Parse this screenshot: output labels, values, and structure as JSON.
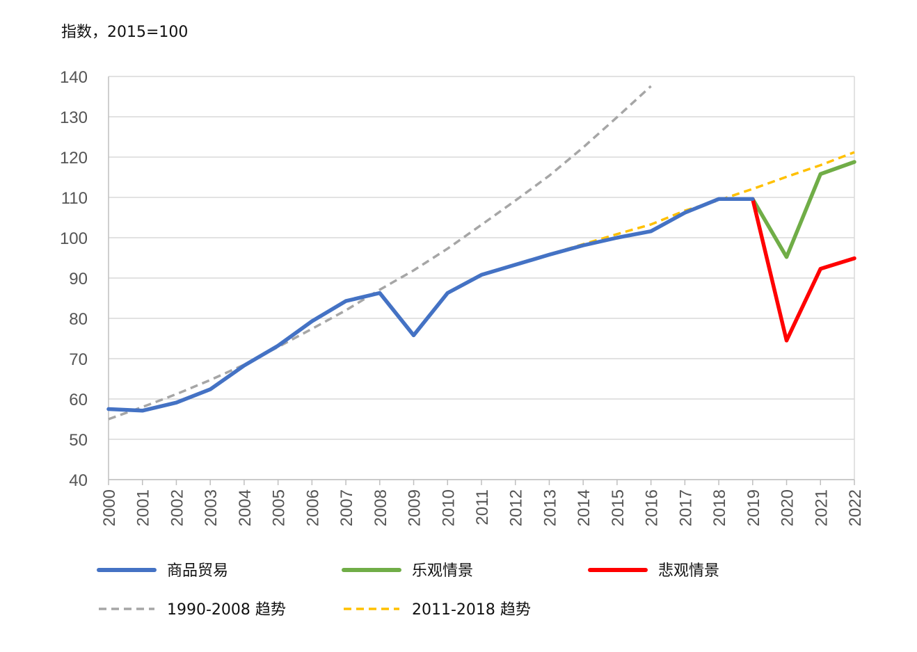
{
  "chart_data": {
    "type": "line",
    "y_unit_label": "指数，2015=100",
    "categories": [
      "2000",
      "2001",
      "2002",
      "2003",
      "2004",
      "2005",
      "2006",
      "2007",
      "2008",
      "2009",
      "2010",
      "2011",
      "2012",
      "2013",
      "2014",
      "2015",
      "2016",
      "2017",
      "2018",
      "2019",
      "2020",
      "2021",
      "2022"
    ],
    "ylim": [
      40,
      140
    ],
    "yticks": [
      40,
      50,
      60,
      70,
      80,
      90,
      100,
      110,
      120,
      130,
      140
    ],
    "grid": true,
    "legend_position": "bottom",
    "series": [
      {
        "name": "商品贸易",
        "color": "#4472C4",
        "style": "solid",
        "points": [
          [
            "2000",
            57.5
          ],
          [
            "2001",
            57.1
          ],
          [
            "2002",
            59.1
          ],
          [
            "2003",
            62.4
          ],
          [
            "2004",
            68.3
          ],
          [
            "2005",
            73.2
          ],
          [
            "2006",
            79.3
          ],
          [
            "2007",
            84.3
          ],
          [
            "2008",
            86.3
          ],
          [
            "2009",
            75.8
          ],
          [
            "2010",
            86.3
          ],
          [
            "2011",
            90.8
          ],
          [
            "2012",
            93.3
          ],
          [
            "2013",
            95.8
          ],
          [
            "2014",
            98.1
          ],
          [
            "2015",
            100.0
          ],
          [
            "2016",
            101.6
          ],
          [
            "2017",
            106.2
          ],
          [
            "2018",
            109.6
          ],
          [
            "2019",
            109.6
          ]
        ]
      },
      {
        "name": "乐观情景",
        "color": "#70AD47",
        "style": "solid",
        "points": [
          [
            "2019",
            109.6
          ],
          [
            "2020",
            95.2
          ],
          [
            "2021",
            115.8
          ],
          [
            "2022",
            118.8
          ]
        ]
      },
      {
        "name": "悲观情景",
        "color": "#FF0000",
        "style": "solid",
        "points": [
          [
            "2019",
            109.6
          ],
          [
            "2020",
            74.5
          ],
          [
            "2021",
            92.3
          ],
          [
            "2022",
            94.9
          ]
        ]
      },
      {
        "name": "1990-2008 趋势",
        "color": "#A6A6A6",
        "style": "dashed",
        "points": [
          [
            "2000",
            55.0
          ],
          [
            "2001",
            58.0
          ],
          [
            "2002",
            61.2
          ],
          [
            "2003",
            64.7
          ],
          [
            "2004",
            68.5
          ],
          [
            "2005",
            72.9
          ],
          [
            "2006",
            77.4
          ],
          [
            "2007",
            82.0
          ],
          [
            "2008",
            87.1
          ],
          [
            "2009",
            91.9
          ],
          [
            "2010",
            97.3
          ],
          [
            "2011",
            103.2
          ],
          [
            "2012",
            109.2
          ],
          [
            "2013",
            115.4
          ],
          [
            "2014",
            122.4
          ],
          [
            "2015",
            129.9
          ],
          [
            "2016",
            137.6
          ]
        ]
      },
      {
        "name": "2011-2018 趋势",
        "color": "#FFC000",
        "style": "dashed",
        "points": [
          [
            "2011",
            90.8
          ],
          [
            "2012",
            93.4
          ],
          [
            "2013",
            95.9
          ],
          [
            "2014",
            98.4
          ],
          [
            "2015",
            100.9
          ],
          [
            "2016",
            103.3
          ],
          [
            "2017",
            106.7
          ],
          [
            "2018",
            109.3
          ],
          [
            "2019",
            112.1
          ],
          [
            "2020",
            115.1
          ],
          [
            "2021",
            118.0
          ],
          [
            "2022",
            121.2
          ]
        ]
      }
    ]
  }
}
